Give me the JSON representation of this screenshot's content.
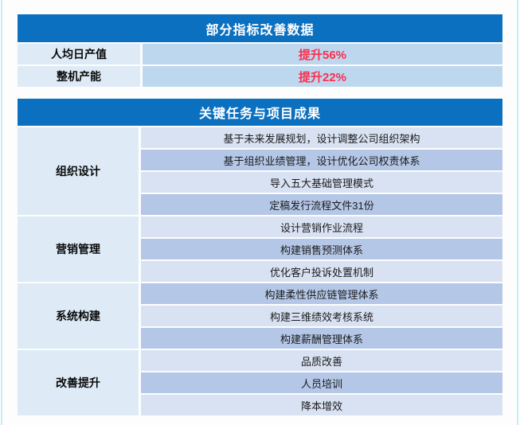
{
  "colors": {
    "frame_color": "#c7edf5",
    "header_bg": "#0b70c0",
    "header_text": "#ffffff",
    "label_cell_bg": "#deebf7",
    "metric_value_bg": "#bdd7ee",
    "row_light": "#d9e2f3",
    "row_dark": "#b4c7e7",
    "value_text": "#fa2e4e"
  },
  "metrics_table": {
    "title": "部分指标改善数据",
    "rows": [
      {
        "label": "人均日产值",
        "value": "提升56%"
      },
      {
        "label": "整机产能",
        "value": "提升22%"
      }
    ]
  },
  "tasks_table": {
    "title": "关键任务与项目成果",
    "groups": [
      {
        "label": "组织设计",
        "tasks": [
          "基于未来发展规划，设计调整公司组织架构",
          "基于组织业绩管理，设计优化公司权责体系",
          "导入五大基础管理模式",
          "定稿发行流程文件31份"
        ]
      },
      {
        "label": "营销管理",
        "tasks": [
          "设计营销作业流程",
          "构建销售预测体系",
          "优化客户投诉处置机制"
        ]
      },
      {
        "label": "系统构建",
        "tasks": [
          "构建柔性供应链管理体系",
          "构建三维绩效考核系统",
          "构建薪酬管理体系"
        ]
      },
      {
        "label": "改善提升",
        "tasks": [
          "品质改善",
          "人员培训",
          "降本增效"
        ]
      }
    ]
  }
}
